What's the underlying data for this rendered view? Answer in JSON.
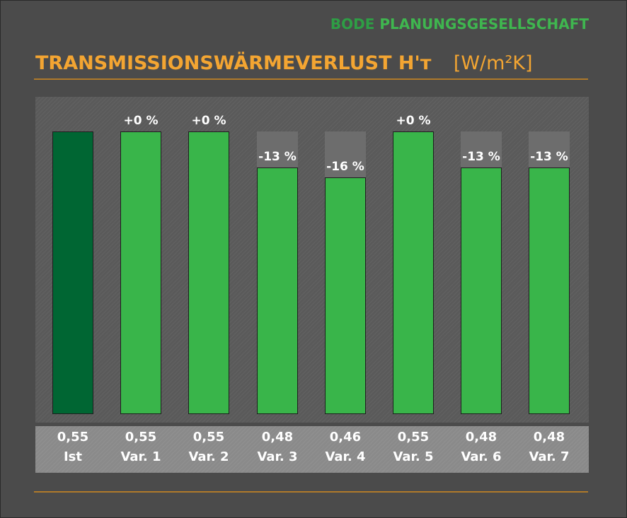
{
  "brand": {
    "part1": "BODE",
    "part2": "PLANUNGSGESELLSCHAFT"
  },
  "chart_data": {
    "type": "bar",
    "title": "TRANSMISSIONSWÄRMEVERLUST H'ᴛ",
    "unit": "[W/m²K]",
    "categories": [
      "Ist",
      "Var. 1",
      "Var. 2",
      "Var. 3",
      "Var. 4",
      "Var. 5",
      "Var. 6",
      "Var. 7"
    ],
    "values": [
      0.55,
      0.55,
      0.55,
      0.48,
      0.46,
      0.55,
      0.48,
      0.48
    ],
    "value_labels": [
      "0,55",
      "0,55",
      "0,55",
      "0,48",
      "0,46",
      "0,55",
      "0,48",
      "0,48"
    ],
    "change_labels": [
      "",
      "+0 %",
      "+0 %",
      "-13 %",
      "-16 %",
      "+0 %",
      "-13 %",
      "-13 %"
    ],
    "reference_value": 0.55,
    "colors": {
      "reference": "#006633",
      "variant": "#39b54a",
      "reference_band": "#6d6d6d"
    },
    "ylim": [
      0,
      0.55
    ],
    "grid": false,
    "legend": "none"
  }
}
